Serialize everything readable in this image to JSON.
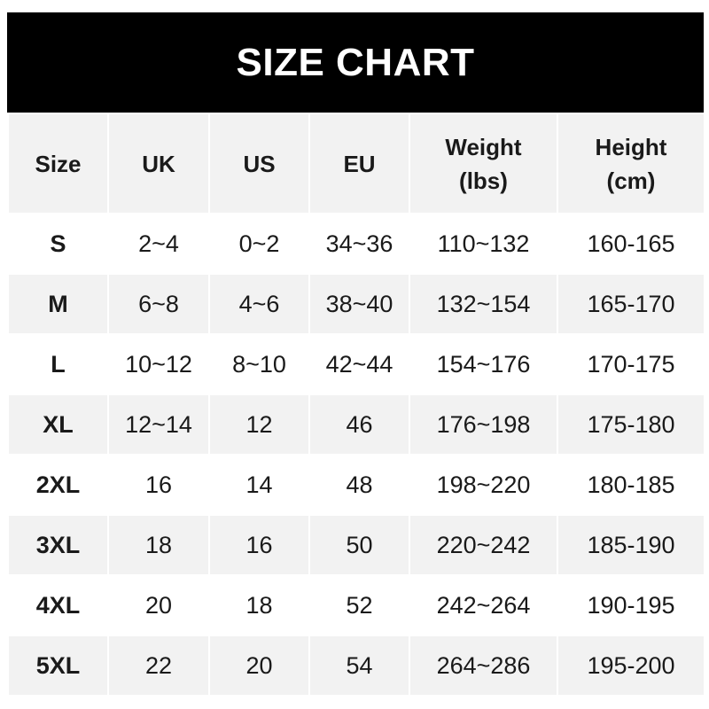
{
  "title": "SIZE CHART",
  "headers": [
    {
      "line1": "Size",
      "line2": ""
    },
    {
      "line1": "UK",
      "line2": ""
    },
    {
      "line1": "US",
      "line2": ""
    },
    {
      "line1": "EU",
      "line2": ""
    },
    {
      "line1": "Weight",
      "line2": "(lbs)"
    },
    {
      "line1": "Height",
      "line2": "(cm)"
    }
  ],
  "rows": [
    [
      "S",
      "2~4",
      "0~2",
      "34~36",
      "110~132",
      "160-165"
    ],
    [
      "M",
      "6~8",
      "4~6",
      "38~40",
      "132~154",
      "165-170"
    ],
    [
      "L",
      "10~12",
      "8~10",
      "42~44",
      "154~176",
      "170-175"
    ],
    [
      "XL",
      "12~14",
      "12",
      "46",
      "176~198",
      "175-180"
    ],
    [
      "2XL",
      "16",
      "14",
      "48",
      "198~220",
      "180-185"
    ],
    [
      "3XL",
      "18",
      "16",
      "50",
      "220~242",
      "185-190"
    ],
    [
      "4XL",
      "20",
      "18",
      "52",
      "242~264",
      "190-195"
    ],
    [
      "5XL",
      "22",
      "20",
      "54",
      "264~286",
      "195-200"
    ]
  ],
  "colors": {
    "title_bg": "#000000",
    "header_bg": "#f2f2f2",
    "alt_row_bg": "#f2f2f2",
    "row_bg": "#ffffff"
  }
}
